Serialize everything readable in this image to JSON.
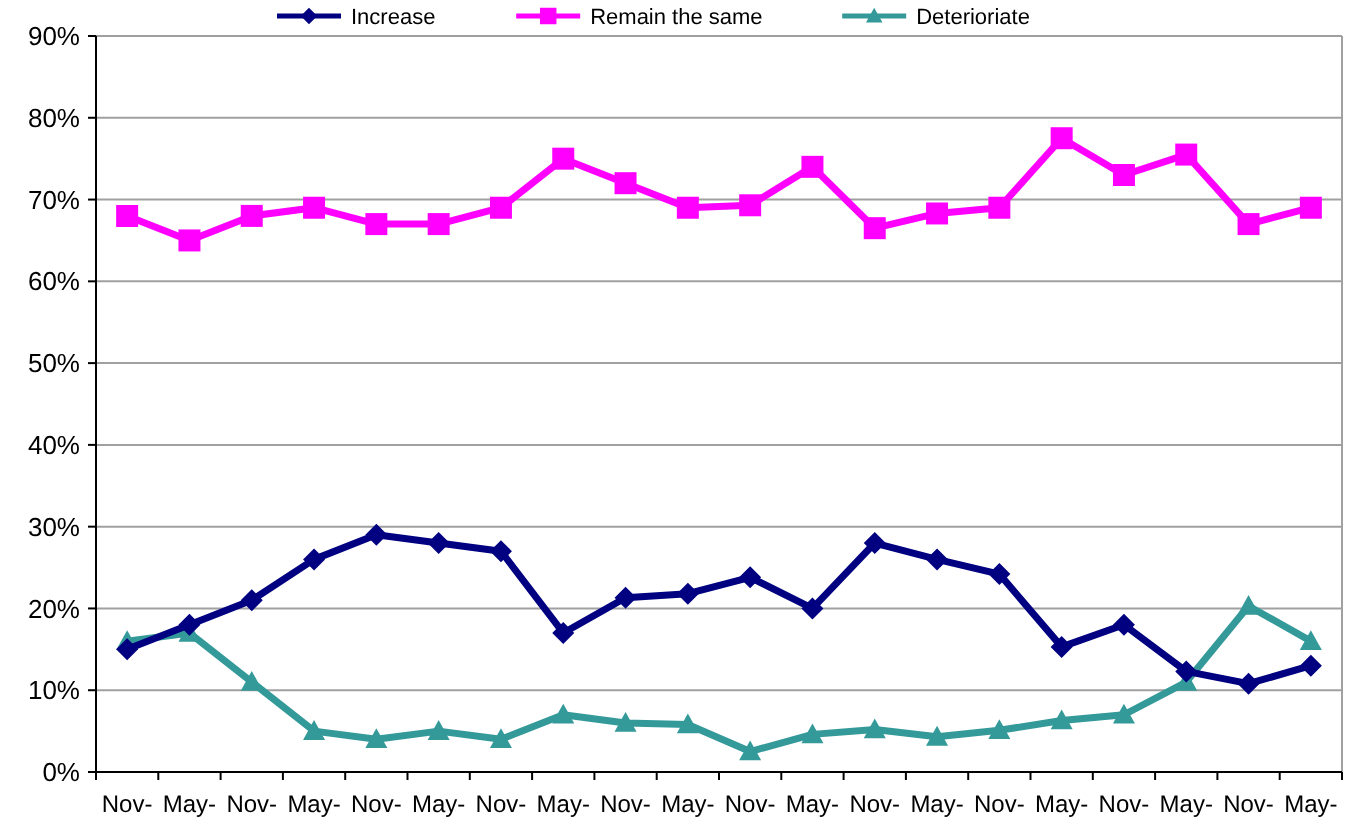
{
  "chart_data": {
    "type": "line",
    "categories": [
      "Nov-",
      "May-",
      "Nov-",
      "May-",
      "Nov-",
      "May-",
      "Nov-",
      "May-",
      "Nov-",
      "May-",
      "Nov-",
      "May-",
      "Nov-",
      "May-",
      "Nov-",
      "May-",
      "Nov-",
      "May-",
      "Nov-",
      "May-"
    ],
    "series": [
      {
        "name": "Increase",
        "color": "#000080",
        "marker": "diamond",
        "values": [
          0.15,
          0.18,
          0.21,
          0.26,
          0.29,
          0.28,
          0.27,
          0.17,
          0.213,
          0.218,
          0.238,
          0.2,
          0.28,
          0.26,
          0.242,
          0.153,
          0.18,
          0.123,
          0.108,
          0.13
        ]
      },
      {
        "name": "Remain the same",
        "color": "#ff00ff",
        "marker": "square",
        "values": [
          0.68,
          0.65,
          0.68,
          0.69,
          0.67,
          0.67,
          0.69,
          0.75,
          0.72,
          0.69,
          0.693,
          0.74,
          0.665,
          0.683,
          0.69,
          0.775,
          0.73,
          0.755,
          0.67,
          0.69
        ]
      },
      {
        "name": "Deterioriate",
        "color": "#339999",
        "marker": "triangle",
        "values": [
          0.16,
          0.17,
          0.11,
          0.05,
          0.04,
          0.05,
          0.04,
          0.07,
          0.06,
          0.058,
          0.025,
          0.046,
          0.052,
          0.043,
          0.051,
          0.063,
          0.07,
          0.11,
          0.203,
          0.16
        ]
      }
    ],
    "ylim": [
      0,
      0.9
    ],
    "yticks": [
      {
        "value": 0,
        "label": "0%"
      },
      {
        "value": 0.1,
        "label": "10%"
      },
      {
        "value": 0.2,
        "label": "20%"
      },
      {
        "value": 0.3,
        "label": "30%"
      },
      {
        "value": 0.4,
        "label": "40%"
      },
      {
        "value": 0.5,
        "label": "50%"
      },
      {
        "value": 0.6,
        "label": "60%"
      },
      {
        "value": 0.7,
        "label": "70%"
      },
      {
        "value": 0.8,
        "label": "80%"
      },
      {
        "value": 0.9,
        "label": "90%"
      }
    ],
    "grid": "y",
    "legend": "top",
    "line_style": "solid"
  }
}
